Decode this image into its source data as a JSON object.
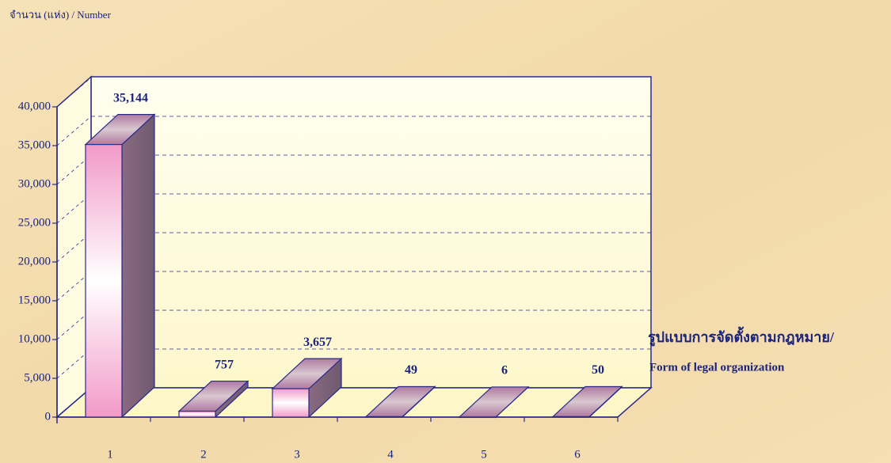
{
  "chart_data": {
    "type": "bar3d",
    "y_axis_label": "จำนวน (แห่ง) / Number",
    "x_axis_label": [
      "รูปแบบการจัดตั้งตามกฎหมาย/",
      "Form of  legal organization"
    ],
    "categories": [
      "1",
      "2",
      "3",
      "4",
      "5",
      "6"
    ],
    "values": [
      35144,
      757,
      3657,
      49,
      6,
      50
    ],
    "value_labels": [
      "35,144",
      "757",
      "3,657",
      "49",
      "6",
      "50"
    ],
    "color": "#f4a6cf",
    "ylim": [
      0,
      40000
    ],
    "yticks": [
      0,
      {
        "value": 5000,
        "label": "5,000"
      },
      {
        "value": 10000,
        "label": "10,000"
      },
      {
        "value": 15000,
        "label": "15,000"
      },
      {
        "value": 20000,
        "label": "20,000"
      },
      {
        "value": 25000,
        "label": "25,000"
      },
      {
        "value": 30000,
        "label": "30,000"
      },
      {
        "value": 35000,
        "label": "35,000"
      },
      {
        "value": 40000,
        "label": "40,000"
      }
    ],
    "grid": true
  }
}
